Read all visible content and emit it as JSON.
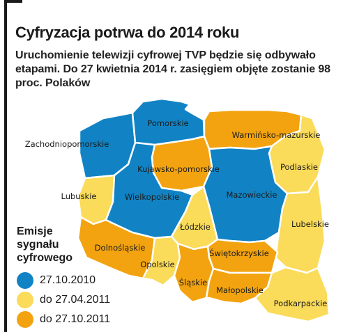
{
  "header": {
    "title": "Cyfryzacja potrwa do 2014 roku",
    "subtitle": "Uruchomienie telewizji cyfrowej TVP będzie się odbywało etapami. Do 27 kwietnia 2014 r. zasięgiem objęte zostanie 98 proc. Polaków"
  },
  "colors": {
    "blue": "#1183c4",
    "yellow": "#fadb5a",
    "orange": "#f2a30f",
    "border": "#ffffff"
  },
  "legend": {
    "title": "Emisje sygnału cyfrowego",
    "items": [
      {
        "color": "#1183c4",
        "label": "27.10.2010"
      },
      {
        "color": "#fadb5a",
        "label": "do 27.04.2011"
      },
      {
        "color": "#f2a30f",
        "label": "do 27.10.2011"
      }
    ]
  },
  "regions": [
    {
      "name": "Zachodniopomorskie",
      "phase": "27.10.2010"
    },
    {
      "name": "Pomorskie",
      "phase": "27.10.2010"
    },
    {
      "name": "Warmińsko-mazurskie",
      "phase": "do 27.10.2011"
    },
    {
      "name": "Podlaskie",
      "phase": "do 27.04.2011"
    },
    {
      "name": "Kujawsko-pomorskie",
      "phase": "do 27.10.2011"
    },
    {
      "name": "Lubuskie",
      "phase": "do 27.04.2011"
    },
    {
      "name": "Wielkopolskie",
      "phase": "27.10.2010"
    },
    {
      "name": "Mazowieckie",
      "phase": "27.10.2010"
    },
    {
      "name": "Łódzkie",
      "phase": "do 27.04.2011"
    },
    {
      "name": "Lubelskie",
      "phase": "do 27.04.2011"
    },
    {
      "name": "Dolnośląskie",
      "phase": "do 27.10.2011"
    },
    {
      "name": "Opolskie",
      "phase": "do 27.04.2011"
    },
    {
      "name": "Świętokrzyskie",
      "phase": "do 27.10.2011"
    },
    {
      "name": "Śląskie",
      "phase": "do 27.10.2011"
    },
    {
      "name": "Małopolskie",
      "phase": "do 27.10.2011"
    },
    {
      "name": "Podkarpackie",
      "phase": "do 27.04.2011"
    }
  ]
}
